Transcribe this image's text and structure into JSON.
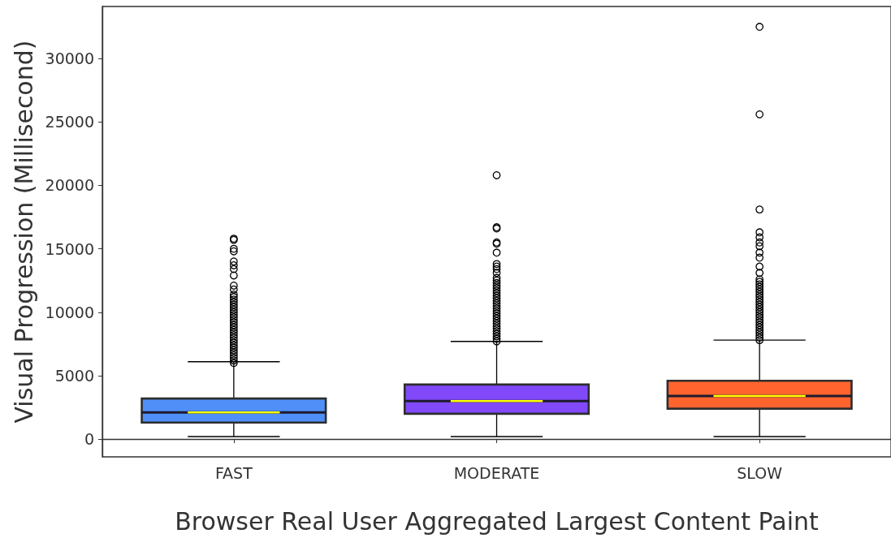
{
  "chart_data": {
    "type": "box",
    "xlabel": "Browser Real User Aggregated Largest Content Paint",
    "ylabel": "Visual Progression (Millisecond)",
    "categories": [
      "FAST",
      "MODERATE",
      "SLOW"
    ],
    "colors": [
      "#4f8ff7",
      "#8149f9",
      "#ff642f"
    ],
    "ylim": [
      -1400,
      34100
    ],
    "yticks": [
      0,
      5000,
      10000,
      15000,
      20000,
      25000,
      30000
    ],
    "boxes": [
      {
        "low": 200,
        "q1": 1300,
        "median": 2100,
        "q3": 3200,
        "high": 6100,
        "outliers": [
          6000,
          6200,
          6400,
          6600,
          6800,
          7000,
          7200,
          7400,
          7600,
          7800,
          8000,
          8200,
          8400,
          8600,
          8800,
          9000,
          9200,
          9400,
          9600,
          9800,
          10000,
          10200,
          10400,
          10600,
          10800,
          11000,
          11200,
          11400,
          11800,
          12100,
          12900,
          13400,
          13700,
          14000,
          14800,
          15000,
          15700,
          15800
        ]
      },
      {
        "low": 200,
        "q1": 2000,
        "median": 3000,
        "q3": 4300,
        "high": 7700,
        "outliers": [
          7700,
          7900,
          8100,
          8300,
          8500,
          8700,
          8900,
          9100,
          9300,
          9500,
          9700,
          9900,
          10100,
          10300,
          10500,
          10700,
          10900,
          11100,
          11300,
          11500,
          11700,
          11900,
          12100,
          12300,
          12500,
          12700,
          13100,
          13400,
          13600,
          13800,
          14700,
          15400,
          15500,
          16600,
          16700,
          20800
        ]
      },
      {
        "low": 200,
        "q1": 2400,
        "median": 3400,
        "q3": 4600,
        "high": 7800,
        "outliers": [
          7800,
          8000,
          8200,
          8400,
          8600,
          8800,
          9000,
          9200,
          9400,
          9600,
          9800,
          10000,
          10200,
          10400,
          10600,
          10800,
          11000,
          11200,
          11400,
          11600,
          11800,
          12000,
          12200,
          12400,
          12600,
          13100,
          13600,
          14300,
          14700,
          15200,
          15500,
          15900,
          16300,
          18100,
          25600,
          32500
        ]
      }
    ]
  }
}
